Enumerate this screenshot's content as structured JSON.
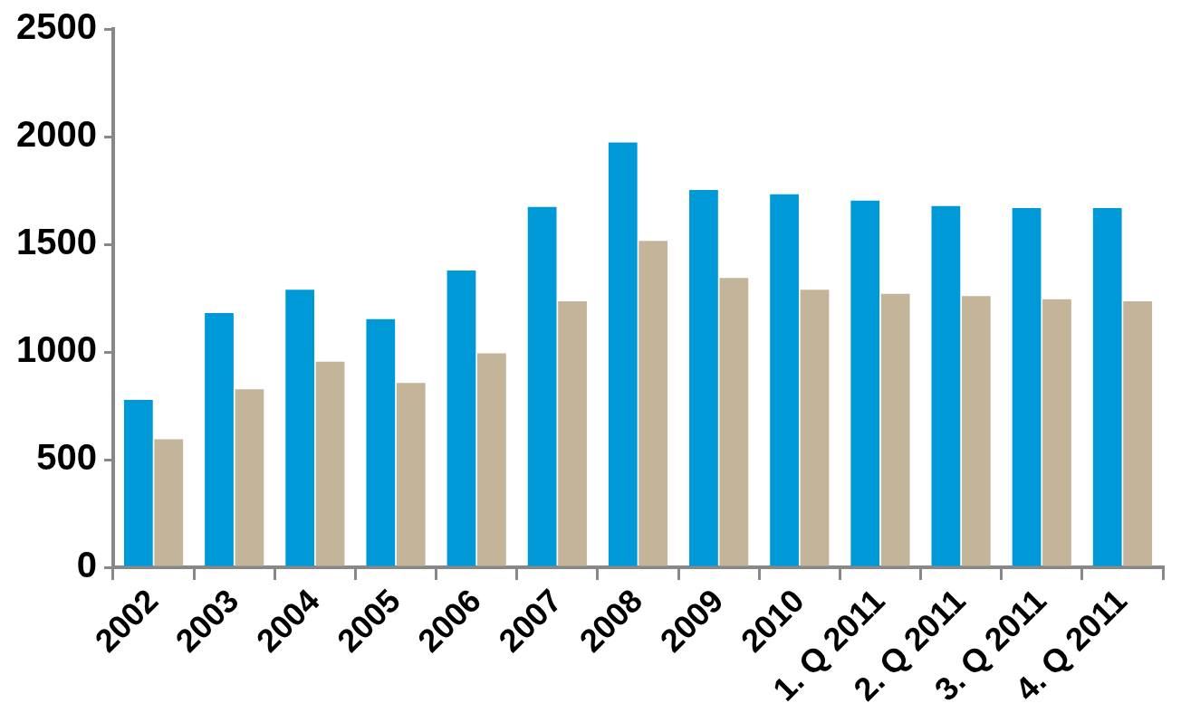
{
  "chart_data": {
    "type": "bar",
    "categories": [
      "2002",
      "2003",
      "2004",
      "2005",
      "2006",
      "2007",
      "2008",
      "2009",
      "2010",
      "1. Q 2011",
      "2. Q 2011",
      "3. Q 2011",
      "4. Q 2011"
    ],
    "series": [
      {
        "color": "#0099D8",
        "values": [
          777,
          1181,
          1289,
          1152,
          1378,
          1673,
          1973,
          1752,
          1732,
          1703,
          1678,
          1668,
          1668
        ]
      },
      {
        "color": "#C4B49A",
        "values": [
          595,
          827,
          955,
          856,
          994,
          1235,
          1516,
          1344,
          1289,
          1270,
          1260,
          1245,
          1235
        ]
      }
    ],
    "ylim": [
      0,
      2500
    ],
    "yticks": [
      0,
      500,
      1000,
      1500,
      2000,
      2500
    ],
    "grid": false
  }
}
